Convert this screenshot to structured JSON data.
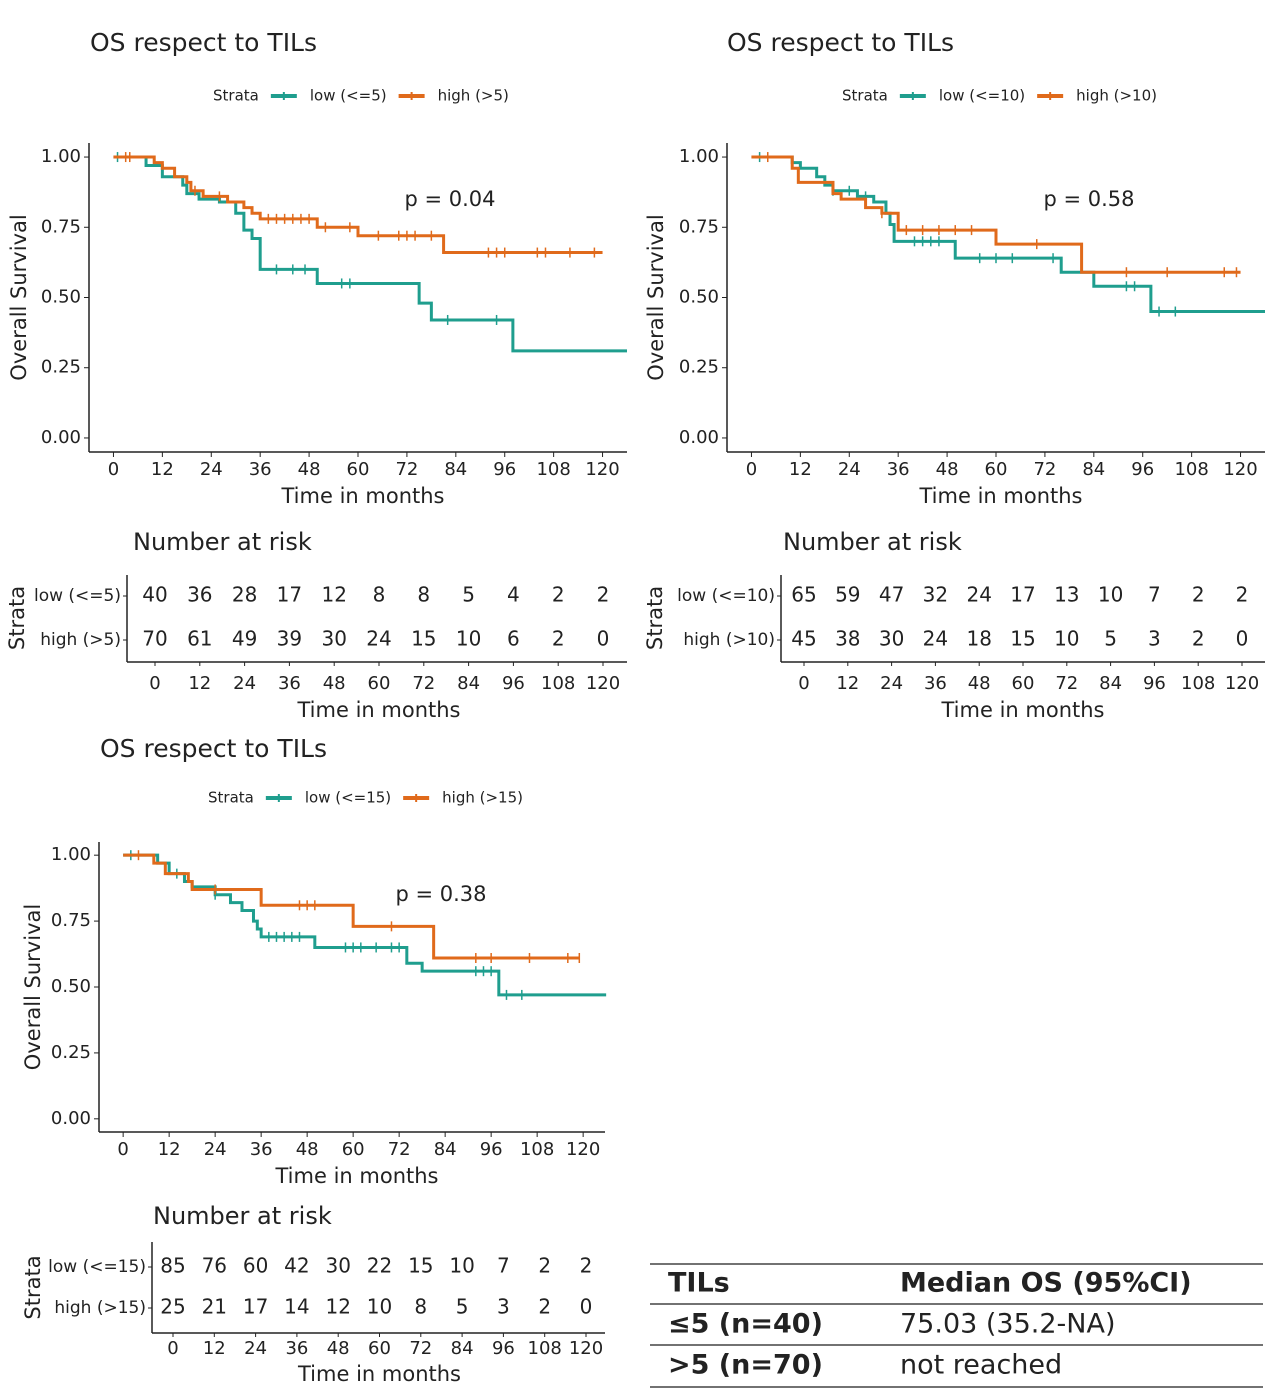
{
  "chart_data": [
    {
      "type": "step",
      "title": "OS respect to TILs",
      "legend_title": "Strata",
      "xlabel": "Time in months",
      "ylabel": "Overall Survival",
      "annotation": "p = 0.04",
      "xlim": [
        -6,
        126
      ],
      "xticks": [
        0,
        12,
        24,
        36,
        48,
        60,
        72,
        84,
        96,
        108,
        120
      ],
      "ylim": [
        -0.05,
        1.05
      ],
      "yticks": [
        {
          "value": 0,
          "label": "0.00"
        },
        {
          "value": 0.25,
          "label": "0.25"
        },
        {
          "value": 0.5,
          "label": "0.50"
        },
        {
          "value": 0.75,
          "label": "0.75"
        },
        {
          "value": 1,
          "label": "1.00"
        }
      ],
      "series": [
        {
          "name": "low (<=5)",
          "color": "#1f9e8e",
          "x": [
            0,
            8,
            12,
            17,
            18,
            21,
            26,
            30,
            32,
            34,
            36,
            50,
            75,
            78,
            98,
            126
          ],
          "values": [
            1,
            0.97,
            0.93,
            0.9,
            0.87,
            0.85,
            0.84,
            0.8,
            0.74,
            0.71,
            0.6,
            0.55,
            0.48,
            0.42,
            0.31,
            0.31
          ],
          "censor_x": [
            1,
            40,
            44,
            47,
            56,
            58,
            82,
            94
          ]
        },
        {
          "name": "high (>5)",
          "color": "#e06a1b",
          "x": [
            0,
            10,
            12,
            15,
            18,
            19,
            22,
            28,
            32,
            34,
            36,
            50,
            60,
            81,
            120
          ],
          "values": [
            1,
            0.98,
            0.96,
            0.93,
            0.91,
            0.88,
            0.86,
            0.84,
            0.82,
            0.8,
            0.78,
            0.75,
            0.72,
            0.66,
            0.66
          ],
          "censor_x": [
            3,
            4,
            20,
            26,
            38,
            40,
            42,
            44,
            46,
            48,
            52,
            58,
            65,
            70,
            72,
            74,
            78,
            92,
            94,
            96,
            104,
            106,
            112,
            118
          ]
        }
      ],
      "risk_table": {
        "title": "Number at risk",
        "ylabel": "Strata",
        "values": [
          [
            40,
            36,
            28,
            17,
            12,
            8,
            8,
            5,
            4,
            2,
            2
          ],
          [
            70,
            61,
            49,
            39,
            30,
            24,
            15,
            10,
            6,
            2,
            0
          ]
        ]
      }
    },
    {
      "type": "step",
      "title": "OS respect to TILs",
      "legend_title": "Strata",
      "xlabel": "Time in months",
      "ylabel": "Overall Survival",
      "annotation": "p = 0.58",
      "xlim": [
        -6,
        126
      ],
      "xticks": [
        0,
        12,
        24,
        36,
        48,
        60,
        72,
        84,
        96,
        108,
        120
      ],
      "ylim": [
        -0.05,
        1.05
      ],
      "yticks": [
        {
          "value": 0,
          "label": "0.00"
        },
        {
          "value": 0.25,
          "label": "0.25"
        },
        {
          "value": 0.5,
          "label": "0.50"
        },
        {
          "value": 0.75,
          "label": "0.75"
        },
        {
          "value": 1,
          "label": "1.00"
        }
      ],
      "series": [
        {
          "name": "low (<=10)",
          "color": "#1f9e8e",
          "x": [
            0,
            10,
            12,
            16,
            18,
            20,
            26,
            30,
            33,
            34,
            35,
            50,
            76,
            84,
            98,
            126
          ],
          "values": [
            1,
            0.98,
            0.96,
            0.93,
            0.9,
            0.88,
            0.86,
            0.84,
            0.8,
            0.76,
            0.7,
            0.64,
            0.59,
            0.54,
            0.45,
            0.45
          ],
          "censor_x": [
            2,
            20,
            24,
            28,
            40,
            42,
            44,
            46,
            56,
            60,
            64,
            74,
            92,
            94,
            100,
            104
          ]
        },
        {
          "name": "high (>10)",
          "color": "#e06a1b",
          "x": [
            0,
            10,
            11.5,
            20,
            22,
            28,
            32,
            36,
            60,
            81,
            120
          ],
          "values": [
            1,
            0.96,
            0.91,
            0.87,
            0.85,
            0.82,
            0.8,
            0.74,
            0.69,
            0.59,
            0.59
          ],
          "censor_x": [
            4,
            32,
            38,
            42,
            46,
            50,
            54,
            70,
            92,
            102,
            116,
            119
          ]
        }
      ],
      "risk_table": {
        "title": "Number at risk",
        "ylabel": "Strata",
        "values": [
          [
            65,
            59,
            47,
            32,
            24,
            17,
            13,
            10,
            7,
            2,
            2
          ],
          [
            45,
            38,
            30,
            24,
            18,
            15,
            10,
            5,
            3,
            2,
            0
          ]
        ]
      }
    },
    {
      "type": "step",
      "title": "OS respect to TILs",
      "legend_title": "Strata",
      "xlabel": "Time in months",
      "ylabel": "Overall Survival",
      "annotation": "p = 0.38",
      "xlim": [
        -6.3,
        125.7
      ],
      "xticks": [
        0,
        12,
        24,
        36,
        48,
        60,
        72,
        84,
        96,
        108,
        120
      ],
      "ylim": [
        -0.05,
        1.05
      ],
      "yticks": [
        {
          "value": 0,
          "label": "0.00"
        },
        {
          "value": 0.25,
          "label": "0.25"
        },
        {
          "value": 0.5,
          "label": "0.50"
        },
        {
          "value": 0.75,
          "label": "0.75"
        },
        {
          "value": 1,
          "label": "1.00"
        }
      ],
      "series": [
        {
          "name": "low (<=15)",
          "color": "#1f9e8e",
          "x": [
            0,
            9,
            12,
            16,
            18,
            24,
            28,
            31,
            34,
            35,
            36,
            50,
            74,
            78,
            98,
            126
          ],
          "values": [
            1,
            0.97,
            0.93,
            0.9,
            0.88,
            0.85,
            0.82,
            0.79,
            0.75,
            0.72,
            0.69,
            0.65,
            0.59,
            0.56,
            0.47,
            0.47
          ],
          "censor_x": [
            2,
            14,
            24,
            38,
            40,
            42,
            44,
            46,
            58,
            60,
            62,
            66,
            70,
            72,
            92,
            94,
            96,
            100,
            104
          ]
        },
        {
          "name": "high (>15)",
          "color": "#e06a1b",
          "x": [
            0,
            8,
            11,
            17,
            18,
            36,
            60,
            81,
            119
          ],
          "values": [
            1,
            0.97,
            0.93,
            0.9,
            0.87,
            0.81,
            0.73,
            0.61,
            0.61
          ],
          "censor_x": [
            4,
            24,
            46,
            48,
            50,
            70,
            92,
            96,
            106,
            116,
            119
          ]
        }
      ],
      "risk_table": {
        "title": "Number at risk",
        "ylabel": "Strata",
        "values": [
          [
            85,
            76,
            60,
            42,
            30,
            22,
            15,
            10,
            7,
            2,
            2
          ],
          [
            25,
            21,
            17,
            14,
            12,
            10,
            8,
            5,
            3,
            2,
            0
          ]
        ]
      }
    }
  ],
  "table": {
    "header": [
      "TILs",
      "Median OS (95%CI)"
    ],
    "rows": [
      [
        "≤5 (n=40)",
        "75.03 (35.2-NA)"
      ],
      [
        ">5 (n=70)",
        "not reached"
      ]
    ]
  }
}
